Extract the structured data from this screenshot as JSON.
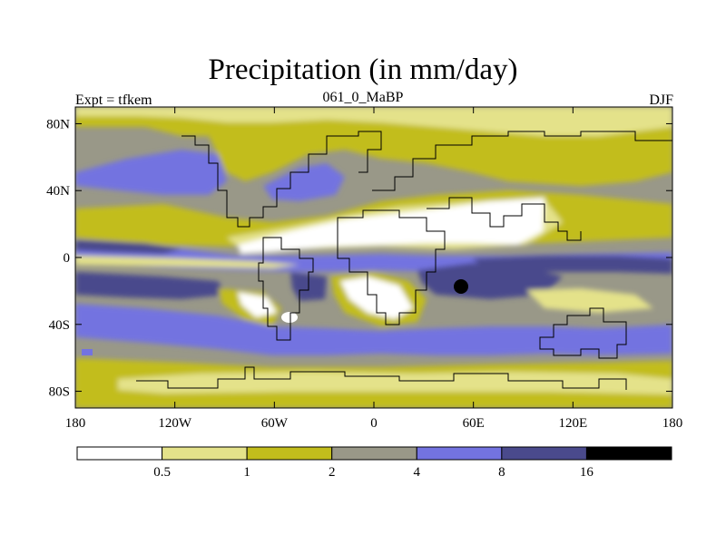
{
  "title": "Precipitation (in mm/day)",
  "left_label": "Expt = tfkem",
  "center_label": "061_0_MaBP",
  "right_label": "DJF",
  "lat_ticks": [
    {
      "lat": 80,
      "label": "80N"
    },
    {
      "lat": 40,
      "label": "40N"
    },
    {
      "lat": 0,
      "label": "0"
    },
    {
      "lat": -40,
      "label": "40S"
    },
    {
      "lat": -80,
      "label": "80S"
    }
  ],
  "lon_ticks": [
    {
      "lon": -180,
      "label": "180"
    },
    {
      "lon": -120,
      "label": "120W"
    },
    {
      "lon": -60,
      "label": "60W"
    },
    {
      "lon": 0,
      "label": "0"
    },
    {
      "lon": 60,
      "label": "60E"
    },
    {
      "lon": 120,
      "label": "120E"
    },
    {
      "lon": 180,
      "label": "180"
    }
  ],
  "colorbar": {
    "colors": [
      "#ffffff",
      "#e4e28a",
      "#c2bd1c",
      "#999888",
      "#7373e0",
      "#4a4a8c",
      "#000000"
    ],
    "labels": [
      "0.5",
      "1",
      "2",
      "4",
      "8",
      "16"
    ]
  }
}
